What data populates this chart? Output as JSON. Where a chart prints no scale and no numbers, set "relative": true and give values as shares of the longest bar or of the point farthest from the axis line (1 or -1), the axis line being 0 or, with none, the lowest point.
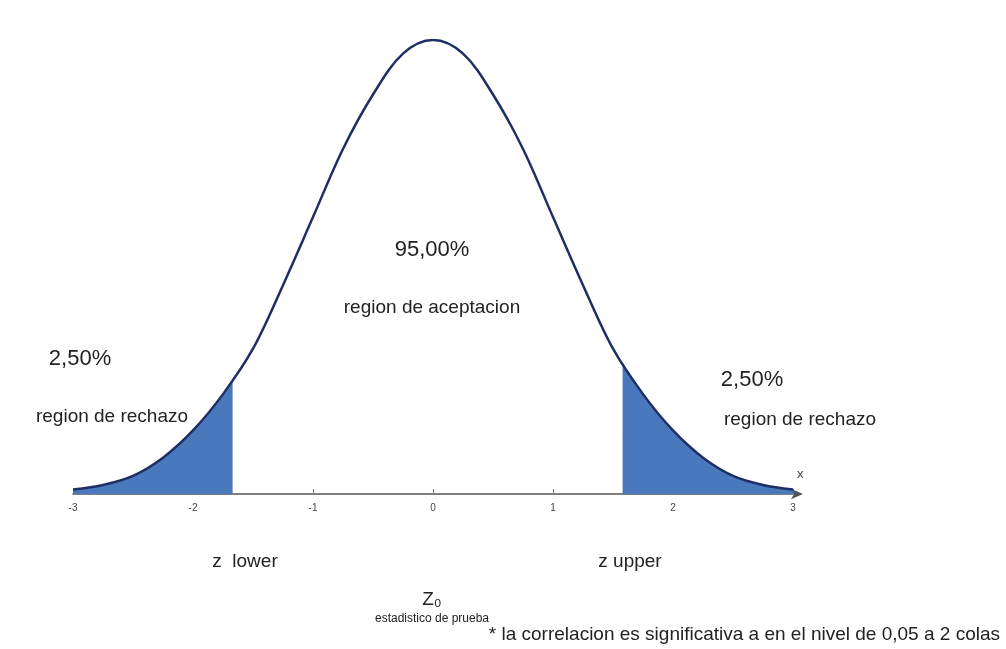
{
  "chart_data": {
    "type": "line",
    "relative": true,
    "xlabel": "x",
    "xlim": [
      -3,
      3
    ],
    "xticks": [
      -3,
      -2,
      -1,
      0,
      1,
      2,
      3
    ],
    "grid": false,
    "marker": "none",
    "line_style": "solid",
    "series": [
      {
        "type": "area",
        "color": "#4a78bd",
        "x": [
          -3,
          -2.75,
          -2.5,
          -2.25,
          -2,
          -1.75,
          -1.67
        ],
        "values": [
          0.01,
          0.02,
          0.04,
          0.08,
          0.14,
          0.22,
          0.25
        ]
      },
      {
        "type": "area",
        "color": "#4a78bd",
        "x": [
          1.58,
          1.75,
          2,
          2.25,
          2.5,
          2.75,
          3
        ],
        "values": [
          0.29,
          0.22,
          0.14,
          0.08,
          0.04,
          0.02,
          0.01
        ]
      },
      {
        "color": "#1f2f63",
        "x": [
          -3,
          -2.75,
          -2.5,
          -2.25,
          -2,
          -1.75,
          -1.5,
          -1.25,
          -1,
          -0.75,
          -0.5,
          -0.25,
          0,
          0.25,
          0.5,
          0.75,
          1,
          1.25,
          1.5,
          1.75,
          2,
          2.25,
          2.5,
          2.75,
          3
        ],
        "values": [
          0.01,
          0.02,
          0.04,
          0.08,
          0.14,
          0.22,
          0.32,
          0.46,
          0.61,
          0.76,
          0.88,
          0.97,
          1,
          0.97,
          0.88,
          0.76,
          0.61,
          0.46,
          0.32,
          0.22,
          0.14,
          0.08,
          0.04,
          0.02,
          0.01
        ]
      }
    ],
    "annotations": [
      "95,00%",
      "region de aceptacion",
      "2,50%",
      "region de rechazo",
      "2,50%",
      "region de rechazo",
      "z  lower",
      "z upper",
      "Z₀",
      "estadistico de prueba",
      "* la correlacion es significativa a en el nivel de 0,05 a 2 colas"
    ]
  }
}
